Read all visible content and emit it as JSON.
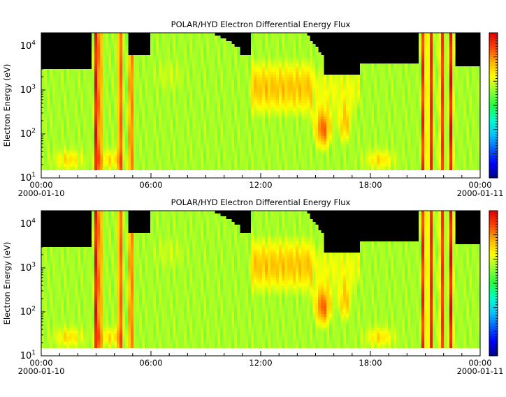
{
  "colors": {
    "background": "#ffffff",
    "no_data": "#000000",
    "colormap": [
      "#00008b",
      "#0000ff",
      "#0060ff",
      "#00c8ff",
      "#00ffc8",
      "#20ff40",
      "#90ff30",
      "#ffff00",
      "#ffb000",
      "#ff4000",
      "#e00000"
    ]
  },
  "chart_data": [
    {
      "type": "heatmap",
      "title": "POLAR/HYD  Electron Differential Energy Flux",
      "ylabel": "Electron Energy (eV)",
      "xlabel": "",
      "y_scale": "log",
      "ylim": [
        10,
        20000
      ],
      "y_ticks": [
        {
          "value": 10,
          "base": "10",
          "exp": "1"
        },
        {
          "value": 100,
          "base": "10",
          "exp": "2"
        },
        {
          "value": 1000,
          "base": "10",
          "exp": "3"
        },
        {
          "value": 10000,
          "base": "10",
          "exp": "4"
        }
      ],
      "x_range": [
        "2000-01-10 00:00",
        "2000-01-11 00:00"
      ],
      "x_ticks": [
        {
          "label": "00:00",
          "date_label": "2000-01-10"
        },
        {
          "label": "06:00",
          "date_label": ""
        },
        {
          "label": "12:00",
          "date_label": ""
        },
        {
          "label": "18:00",
          "date_label": ""
        },
        {
          "label": "00:00",
          "date_label": "2000-01-11"
        }
      ],
      "colorbar": {
        "scale": "log",
        "labels": []
      },
      "grid": false
    },
    {
      "type": "heatmap",
      "title": "POLAR/HYD  Electron Differential Energy Flux",
      "ylabel": "Electron Energy (eV)",
      "xlabel": "",
      "y_scale": "log",
      "ylim": [
        10,
        20000
      ],
      "y_ticks": [
        {
          "value": 10,
          "base": "10",
          "exp": "1"
        },
        {
          "value": 100,
          "base": "10",
          "exp": "2"
        },
        {
          "value": 1000,
          "base": "10",
          "exp": "3"
        },
        {
          "value": 10000,
          "base": "10",
          "exp": "4"
        }
      ],
      "x_range": [
        "2000-01-10 00:00",
        "2000-01-11 00:00"
      ],
      "x_ticks": [
        {
          "label": "00:00",
          "date_label": "2000-01-10"
        },
        {
          "label": "06:00",
          "date_label": ""
        },
        {
          "label": "12:00",
          "date_label": ""
        },
        {
          "label": "18:00",
          "date_label": ""
        },
        {
          "label": "00:00",
          "date_label": "2000-01-11"
        }
      ],
      "colorbar": {
        "scale": "log",
        "labels": []
      },
      "grid": false
    }
  ]
}
